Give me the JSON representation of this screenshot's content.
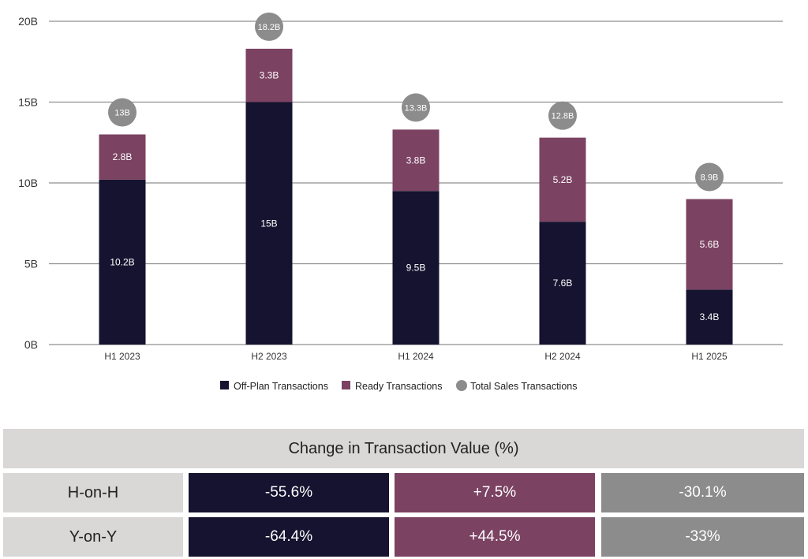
{
  "colors": {
    "off_plan": "#15132f",
    "ready": "#7b4262",
    "total": "#8c8c8c",
    "grid": "#8f8f8f",
    "table_label_bg": "#d9d8d6"
  },
  "chart_data": {
    "type": "bar",
    "stacked": true,
    "categories": [
      "H1 2023",
      "H2 2023",
      "H1 2024",
      "H2 2024",
      "H1 2025"
    ],
    "series": [
      {
        "name": "Off-Plan Transactions",
        "values": [
          10.2,
          15,
          9.5,
          7.6,
          3.4
        ],
        "labels": [
          "10.2B",
          "15B",
          "9.5B",
          "7.6B",
          "3.4B"
        ]
      },
      {
        "name": "Ready Transactions",
        "values": [
          2.8,
          3.3,
          3.8,
          5.2,
          5.6
        ],
        "labels": [
          "2.8B",
          "3.3B",
          "3.8B",
          "5.2B",
          "5.6B"
        ]
      }
    ],
    "totals": {
      "name": "Total Sales Transactions",
      "values": [
        13,
        18.2,
        13.3,
        12.8,
        8.9
      ],
      "labels": [
        "13B",
        "18.2B",
        "13.3B",
        "12.8B",
        "8.9B"
      ]
    },
    "ylim": [
      0,
      20
    ],
    "yticks": [
      0,
      5,
      10,
      15,
      20
    ],
    "ytick_labels": [
      "0B",
      "5B",
      "10B",
      "15B",
      "20B"
    ],
    "grid": true,
    "legend_position": "bottom"
  },
  "table": {
    "title": "Change in Transaction Value (%)",
    "rows": [
      {
        "label": "H-on-H",
        "values": [
          "-55.6%",
          "+7.5%",
          "-30.1%"
        ]
      },
      {
        "label": "Y-on-Y",
        "values": [
          "-64.4%",
          "+44.5%",
          "-33%"
        ]
      }
    ]
  }
}
